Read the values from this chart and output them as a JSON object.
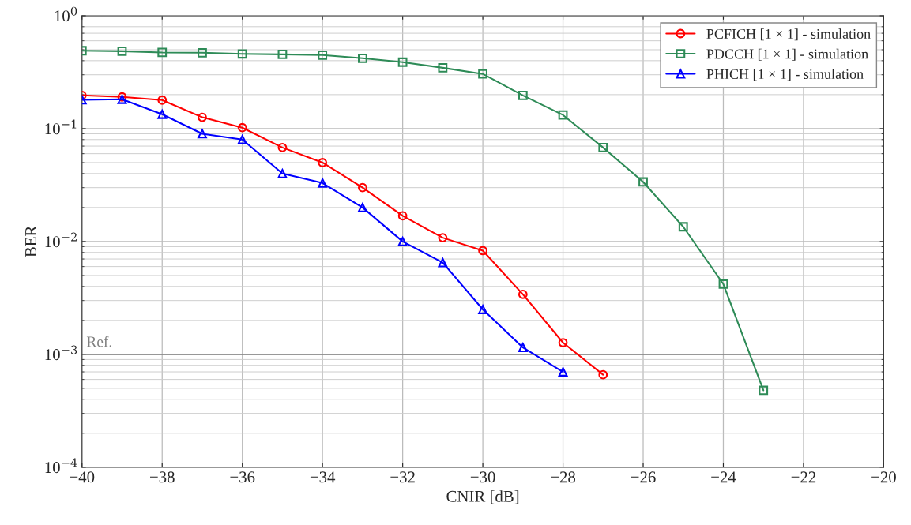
{
  "chart_data": {
    "type": "line",
    "xlabel": "CNIR [dB]",
    "ylabel": "BER",
    "log": "y",
    "xlim": [
      -40,
      -20
    ],
    "ylim": [
      0.0001,
      1
    ],
    "xticks": [
      {
        "value": -40,
        "label": "−40"
      },
      {
        "value": -38,
        "label": "−38"
      },
      {
        "value": -36,
        "label": "−36"
      },
      {
        "value": -34,
        "label": "−34"
      },
      {
        "value": -32,
        "label": "−32"
      },
      {
        "value": -30,
        "label": "−30"
      },
      {
        "value": -28,
        "label": "−28"
      },
      {
        "value": -26,
        "label": "−26"
      },
      {
        "value": -24,
        "label": "−24"
      },
      {
        "value": -22,
        "label": "−22"
      },
      {
        "value": -20,
        "label": "−20"
      }
    ],
    "yticks": [
      {
        "value": 0.0001,
        "label": "10$^{−4}$"
      },
      {
        "value": 0.001,
        "label": "10$^{−3}$"
      },
      {
        "value": 0.01,
        "label": "10$^{−2}$"
      },
      {
        "value": 0.1,
        "label": "10$^{−1}$"
      },
      {
        "value": 1,
        "label": "10$^{0}$"
      }
    ],
    "grid": true,
    "legend": "top right",
    "line_style": "solid",
    "ref_lines": [
      {
        "axis": "y",
        "value": 0.001,
        "label": "Ref.",
        "color": "#808080"
      }
    ],
    "series": [
      {
        "name": "PCFICH [1 × 1] - simulation",
        "color": "#ff0000",
        "marker": "circle",
        "x": [
          -40,
          -39,
          -38,
          -37,
          -36,
          -35,
          -34,
          -33,
          -32,
          -31,
          -30,
          -29,
          -28,
          -27
        ],
        "values": [
          0.197,
          0.191,
          0.179,
          0.126,
          0.102,
          0.068,
          0.05,
          0.03,
          0.0169,
          0.0108,
          0.0083,
          0.0034,
          0.00127,
          0.00066
        ]
      },
      {
        "name": "PDCCH [1 × 1] - simulation",
        "color": "#2e8b57",
        "marker": "square",
        "x": [
          -40,
          -39,
          -38,
          -37,
          -36,
          -35,
          -34,
          -33,
          -32,
          -31,
          -30,
          -29,
          -28,
          -27,
          -26,
          -25,
          -24,
          -23
        ],
        "values": [
          0.49,
          0.485,
          0.473,
          0.47,
          0.459,
          0.455,
          0.448,
          0.42,
          0.388,
          0.346,
          0.305,
          0.197,
          0.132,
          0.068,
          0.0337,
          0.0135,
          0.0042,
          0.00048
        ]
      },
      {
        "name": "PHICH [1 × 1] - simulation",
        "color": "#0000ff",
        "marker": "triangle",
        "x": [
          -40,
          -39,
          -38,
          -37,
          -36,
          -35,
          -34,
          -33,
          -32,
          -31,
          -30,
          -29,
          -28
        ],
        "values": [
          0.18,
          0.182,
          0.134,
          0.09,
          0.08,
          0.04,
          0.033,
          0.02,
          0.01,
          0.0065,
          0.0025,
          0.00115,
          0.0007
        ]
      }
    ]
  }
}
